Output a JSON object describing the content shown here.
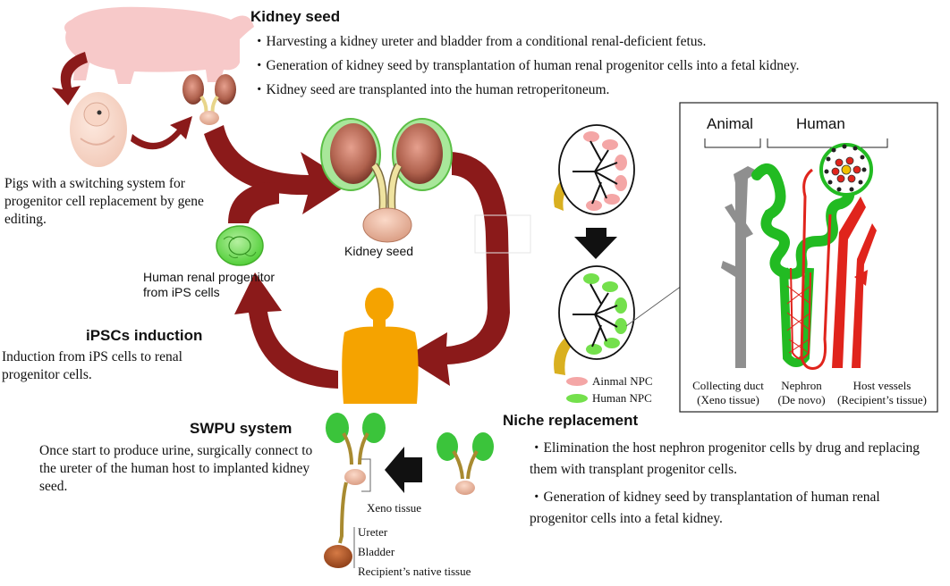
{
  "kidney_seed": {
    "title": "Kidney seed",
    "bullets": [
      "・Harvesting a kidney ureter and bladder from a conditional renal-deficient fetus.",
      "・Generation of kidney seed by transplantation of human renal progenitor cells into a fetal kidney.",
      "・Kidney seed are transplanted into the human retroperitoneum."
    ],
    "center_label": "Kidney seed"
  },
  "pig": {
    "description": "Pigs with a switching system for progenitor cell replacement by gene editing."
  },
  "ipsc": {
    "cell_label": "Human renal progenitor from iPS cells",
    "title": "iPSCs induction",
    "description": "Induction from iPS cells to renal progenitor cells."
  },
  "swpu": {
    "title": "SWPU system",
    "description": "Once start to produce urine, surgically connect to the ureter of the human host to implanted kidney seed.",
    "labels": {
      "xeno": "Xeno tissue",
      "ureter": "Ureter",
      "bladder": "Bladder",
      "native": "Recipient’s native tissue"
    }
  },
  "niche": {
    "title": "Niche replacement",
    "bullets": [
      "・Elimination the host nephron progenitor cells by drug and replacing them with transplant progenitor cells.",
      "・Generation of kidney seed by transplantation of human renal progenitor cells into a fetal kidney."
    ],
    "legend": [
      {
        "label": "Ainmal NPC",
        "color": "#f5a0a0"
      },
      {
        "label": "Human NPC",
        "color": "#6ddf4a"
      }
    ]
  },
  "inset": {
    "header_animal": "Animal",
    "header_human": "Human",
    "captions": [
      {
        "line1": "Collecting duct",
        "line2": "(Xeno tissue)"
      },
      {
        "line1": "Nephron",
        "line2": "(De novo)"
      },
      {
        "line1": "Host vessels",
        "line2": "(Recipient’s tissue)"
      }
    ]
  },
  "colors": {
    "arrow": "#8b1a1a",
    "pig": "#f7c9c9",
    "human_silhouette": "#f5a300",
    "kidney_green": "#33cc33",
    "vessel_red": "#e0241c",
    "duct_gray": "#8f8f8f"
  }
}
